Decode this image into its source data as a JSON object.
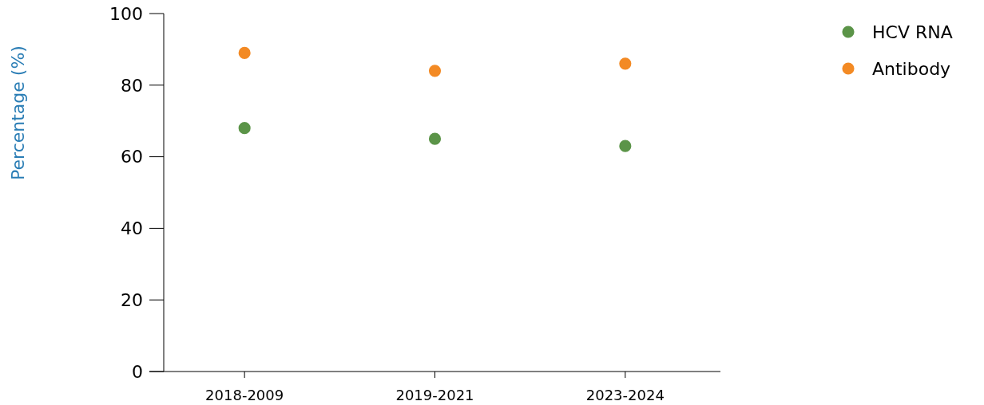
{
  "chart_data": {
    "type": "scatter",
    "ylabel": "Percentage (%)",
    "categories": [
      "2018-2009",
      "2019-2021",
      "2023-2024"
    ],
    "series": [
      {
        "name": "HCV RNA",
        "color": "#5b9448",
        "values": [
          68,
          65,
          63
        ]
      },
      {
        "name": "Antibody",
        "color": "#f38a24",
        "values": [
          89,
          84,
          86
        ]
      }
    ],
    "ylim": [
      0,
      100
    ],
    "yticks": [
      0,
      20,
      40,
      60,
      80,
      100
    ],
    "grid": false,
    "legend": "top right",
    "marker": "circle"
  }
}
